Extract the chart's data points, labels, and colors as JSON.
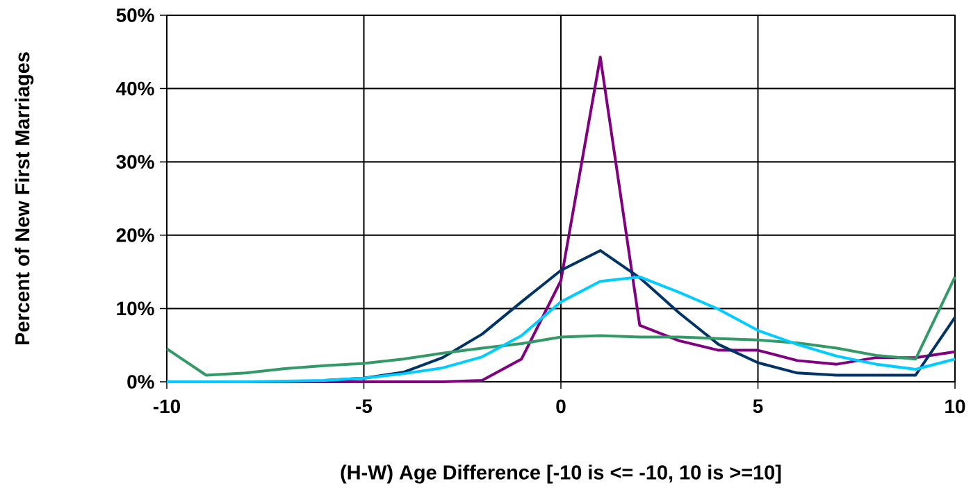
{
  "chart_data": {
    "type": "line",
    "xlabel": "(H-W) Age Difference  [-10 is <= -10, 10 is >=10]",
    "ylabel": "Percent of New First Marriages",
    "x": [
      -10,
      -9,
      -8,
      -7,
      -6,
      -5,
      -4,
      -3,
      -2,
      -1,
      0,
      1,
      2,
      3,
      4,
      5,
      6,
      7,
      8,
      9,
      10
    ],
    "series": [
      {
        "color": "#800080",
        "values": [
          null,
          null,
          0,
          0,
          0,
          0,
          0,
          0,
          0.2,
          3.1,
          13.8,
          44.3,
          7.7,
          5.6,
          4.3,
          4.3,
          2.9,
          2.4,
          3.3,
          3.3,
          4.1
        ]
      },
      {
        "color": "#003366",
        "values": [
          null,
          null,
          null,
          null,
          0.2,
          0.5,
          1.3,
          3.3,
          6.5,
          10.9,
          15.2,
          17.9,
          14.2,
          9.4,
          5.1,
          2.6,
          1.2,
          0.9,
          0.9,
          0.9,
          8.8
        ]
      },
      {
        "color": "#339966",
        "values": [
          4.5,
          0.9,
          1.2,
          1.8,
          2.2,
          2.5,
          3.1,
          3.9,
          4.6,
          5.2,
          6.1,
          6.3,
          6.1,
          6.1,
          5.9,
          5.7,
          5.3,
          4.6,
          3.6,
          3.1,
          14.3
        ]
      },
      {
        "color": "#00ccff",
        "values": [
          0,
          0,
          0,
          0.1,
          0.2,
          0.5,
          1.1,
          1.9,
          3.4,
          6.3,
          10.9,
          13.7,
          14.3,
          12.2,
          9.9,
          7.0,
          5.1,
          3.5,
          2.4,
          1.7,
          3.1
        ]
      }
    ],
    "xlim": [
      -10,
      10
    ],
    "xticks": [
      -10,
      -5,
      0,
      5,
      10
    ],
    "ylim": [
      0,
      50
    ],
    "yticks": [
      {
        "value": 0,
        "label": "0%"
      },
      {
        "value": 10,
        "label": "10%"
      },
      {
        "value": 20,
        "label": "20%"
      },
      {
        "value": 30,
        "label": "30%"
      },
      {
        "value": 40,
        "label": "40%"
      },
      {
        "value": 50,
        "label": "50%"
      }
    ],
    "grid": true,
    "marker": "none",
    "line_style": "solid"
  }
}
